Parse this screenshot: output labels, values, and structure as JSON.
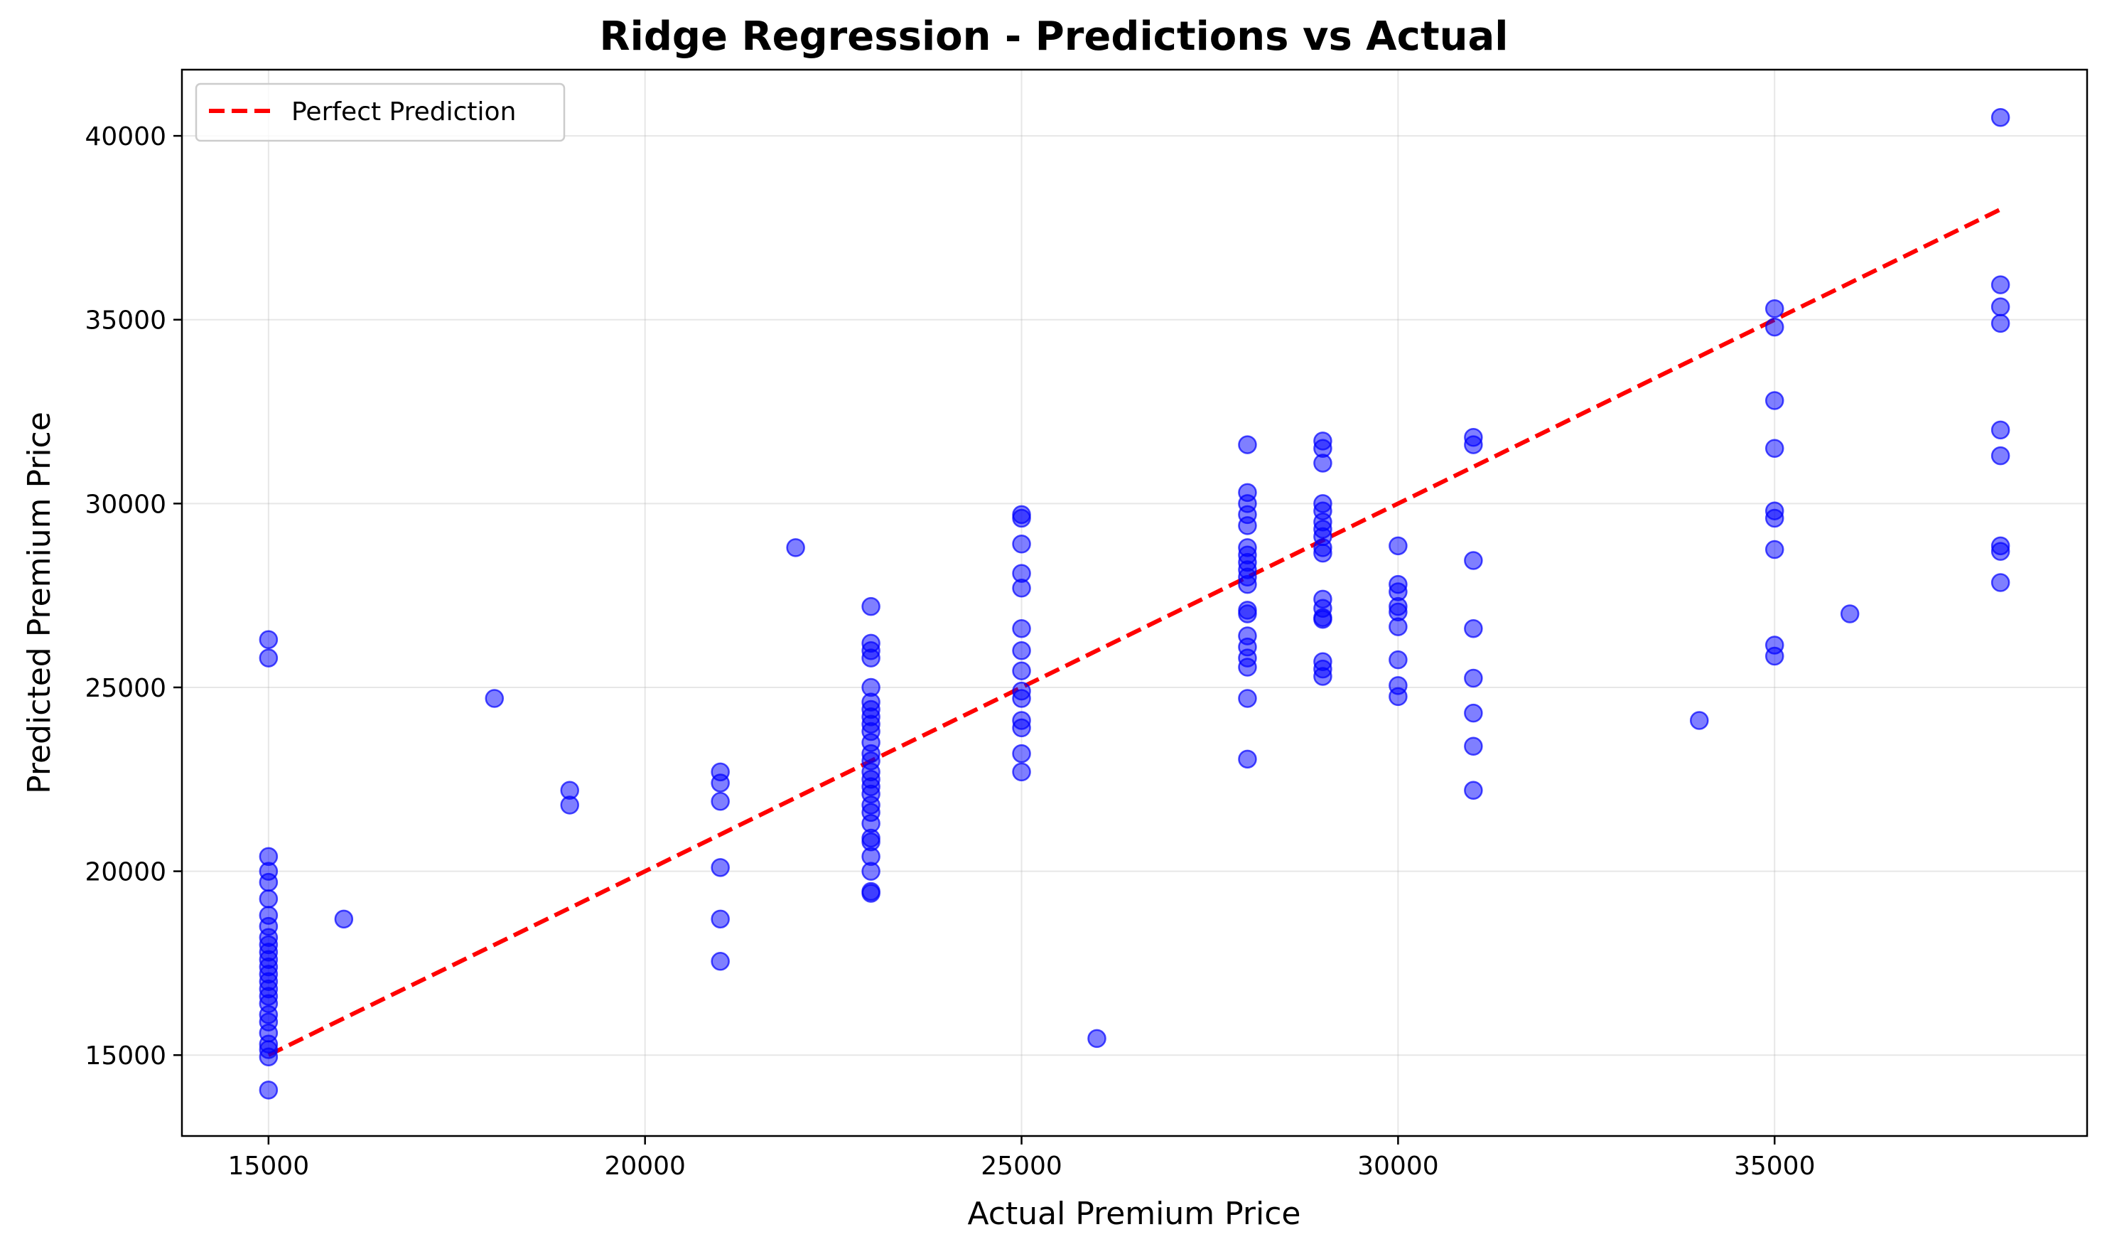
{
  "chart_data": {
    "type": "scatter",
    "title": "Ridge Regression - Predictions vs Actual",
    "xlabel": "Actual Premium Price",
    "ylabel": "Predicted Premium Price",
    "xlim": [
      13850,
      39150
    ],
    "ylim": [
      12800,
      41800
    ],
    "x_ticks": [
      15000,
      20000,
      25000,
      30000,
      35000
    ],
    "y_ticks": [
      15000,
      20000,
      25000,
      30000,
      35000,
      40000
    ],
    "grid": true,
    "legend_position": "top-left",
    "colors": {
      "points": "#0000ff",
      "reference_line": "#ff0000"
    },
    "reference_line": {
      "name": "Perfect Prediction",
      "x": [
        15000,
        38000
      ],
      "y": [
        15000,
        38000
      ],
      "style": "dashed"
    },
    "points": [
      [
        15000,
        26300
      ],
      [
        15000,
        25800
      ],
      [
        15000,
        20400
      ],
      [
        15000,
        20000
      ],
      [
        15000,
        19700
      ],
      [
        15000,
        19250
      ],
      [
        15000,
        18800
      ],
      [
        15000,
        18500
      ],
      [
        15000,
        18200
      ],
      [
        15000,
        18000
      ],
      [
        15000,
        17800
      ],
      [
        15000,
        17600
      ],
      [
        15000,
        17400
      ],
      [
        15000,
        17200
      ],
      [
        15000,
        17000
      ],
      [
        15000,
        16800
      ],
      [
        15000,
        16600
      ],
      [
        15000,
        16400
      ],
      [
        15000,
        16100
      ],
      [
        15000,
        15900
      ],
      [
        15000,
        15600
      ],
      [
        15000,
        15300
      ],
      [
        15000,
        15150
      ],
      [
        15000,
        14950
      ],
      [
        15000,
        14050
      ],
      [
        16000,
        18700
      ],
      [
        18000,
        24700
      ],
      [
        19000,
        22200
      ],
      [
        19000,
        21800
      ],
      [
        21000,
        22700
      ],
      [
        21000,
        22400
      ],
      [
        21000,
        21900
      ],
      [
        21000,
        20100
      ],
      [
        21000,
        18700
      ],
      [
        21000,
        17550
      ],
      [
        22000,
        28800
      ],
      [
        23000,
        27200
      ],
      [
        23000,
        26200
      ],
      [
        23000,
        26000
      ],
      [
        23000,
        25800
      ],
      [
        23000,
        25000
      ],
      [
        23000,
        24600
      ],
      [
        23000,
        24400
      ],
      [
        23000,
        24200
      ],
      [
        23000,
        24000
      ],
      [
        23000,
        23800
      ],
      [
        23000,
        23500
      ],
      [
        23000,
        23200
      ],
      [
        23000,
        23000
      ],
      [
        23000,
        22700
      ],
      [
        23000,
        22500
      ],
      [
        23000,
        22300
      ],
      [
        23000,
        22100
      ],
      [
        23000,
        21800
      ],
      [
        23000,
        21600
      ],
      [
        23000,
        21300
      ],
      [
        23000,
        20900
      ],
      [
        23000,
        20800
      ],
      [
        23000,
        20400
      ],
      [
        23000,
        20000
      ],
      [
        23000,
        19450
      ],
      [
        23000,
        19400
      ],
      [
        25000,
        29700
      ],
      [
        25000,
        29600
      ],
      [
        25000,
        28900
      ],
      [
        25000,
        28100
      ],
      [
        25000,
        27700
      ],
      [
        25000,
        26600
      ],
      [
        25000,
        26000
      ],
      [
        25000,
        25450
      ],
      [
        25000,
        24900
      ],
      [
        25000,
        24700
      ],
      [
        25000,
        24100
      ],
      [
        25000,
        23900
      ],
      [
        25000,
        23200
      ],
      [
        25000,
        22700
      ],
      [
        26000,
        15450
      ],
      [
        28000,
        31600
      ],
      [
        28000,
        30300
      ],
      [
        28000,
        30000
      ],
      [
        28000,
        29700
      ],
      [
        28000,
        29400
      ],
      [
        28000,
        28800
      ],
      [
        28000,
        28600
      ],
      [
        28000,
        28400
      ],
      [
        28000,
        28200
      ],
      [
        28000,
        28000
      ],
      [
        28000,
        27800
      ],
      [
        28000,
        27100
      ],
      [
        28000,
        27000
      ],
      [
        28000,
        26400
      ],
      [
        28000,
        26100
      ],
      [
        28000,
        25800
      ],
      [
        28000,
        25550
      ],
      [
        28000,
        24700
      ],
      [
        28000,
        23050
      ],
      [
        29000,
        31700
      ],
      [
        29000,
        31500
      ],
      [
        29000,
        31100
      ],
      [
        29000,
        30000
      ],
      [
        29000,
        29800
      ],
      [
        29000,
        29500
      ],
      [
        29000,
        29300
      ],
      [
        29000,
        29100
      ],
      [
        29000,
        28800
      ],
      [
        29000,
        28650
      ],
      [
        29000,
        27400
      ],
      [
        29000,
        27150
      ],
      [
        29000,
        26900
      ],
      [
        29000,
        26850
      ],
      [
        29000,
        25700
      ],
      [
        29000,
        25500
      ],
      [
        29000,
        25300
      ],
      [
        30000,
        28850
      ],
      [
        30000,
        27800
      ],
      [
        30000,
        27600
      ],
      [
        30000,
        27200
      ],
      [
        30000,
        27050
      ],
      [
        30000,
        26650
      ],
      [
        30000,
        25750
      ],
      [
        30000,
        25050
      ],
      [
        30000,
        24750
      ],
      [
        31000,
        31800
      ],
      [
        31000,
        31600
      ],
      [
        31000,
        28450
      ],
      [
        31000,
        26600
      ],
      [
        31000,
        25250
      ],
      [
        31000,
        24300
      ],
      [
        31000,
        23400
      ],
      [
        31000,
        22200
      ],
      [
        34000,
        24100
      ],
      [
        35000,
        35300
      ],
      [
        35000,
        34800
      ],
      [
        35000,
        32800
      ],
      [
        35000,
        31500
      ],
      [
        35000,
        29800
      ],
      [
        35000,
        29600
      ],
      [
        35000,
        28750
      ],
      [
        35000,
        26150
      ],
      [
        35000,
        25850
      ],
      [
        36000,
        27000
      ],
      [
        38000,
        40500
      ],
      [
        38000,
        35950
      ],
      [
        38000,
        35350
      ],
      [
        38000,
        34900
      ],
      [
        38000,
        32000
      ],
      [
        38000,
        31300
      ],
      [
        38000,
        28850
      ],
      [
        38000,
        28700
      ],
      [
        38000,
        27850
      ]
    ]
  }
}
